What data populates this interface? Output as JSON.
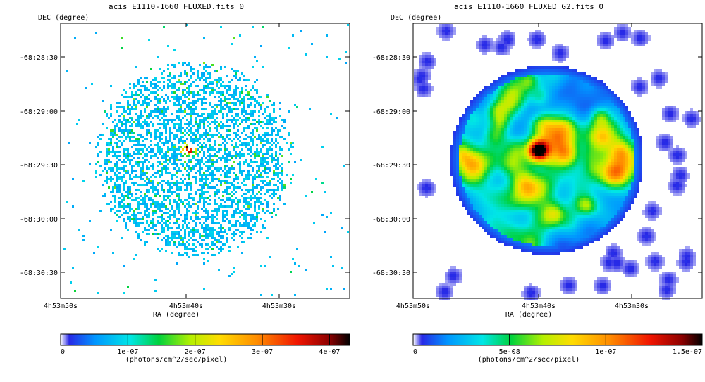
{
  "chart_data": [
    {
      "type": "heatmap",
      "title": "acis_E1110-1660_FLUXED.fits_0",
      "ylabel": "DEC (degree)",
      "xlabel": "RA (degree)",
      "x_ticks": [
        "4h53m50s",
        "4h53m40s",
        "4h53m30s"
      ],
      "y_ticks": [
        "-68:28:30",
        "-68:29:00",
        "-68:29:30",
        "-68:30:00",
        "-68:30:30"
      ],
      "colorbar": {
        "label": "(photons/cm^2/sec/pixel)",
        "range": [
          0,
          4.3e-07
        ],
        "ticks": [
          {
            "value": 0,
            "label": "0"
          },
          {
            "value": 1e-07,
            "label": "1e-07"
          },
          {
            "value": 2e-07,
            "label": "2e-07"
          },
          {
            "value": 3e-07,
            "label": "3e-07"
          },
          {
            "value": 4e-07,
            "label": "4e-07"
          }
        ]
      },
      "image": {
        "style": "sparse-counts",
        "sources": [
          {
            "ra": "4h53m40.5s",
            "dec": "-68:29:22",
            "peak": 4e-07
          }
        ]
      },
      "grid": false
    },
    {
      "type": "heatmap",
      "title": "acis_E1110-1660_FLUXED_G2.fits_0",
      "ylabel": "DEC (degree)",
      "xlabel": "RA (degree)",
      "x_ticks": [
        "4h53m50s",
        "4h53m40s",
        "4h53m30s"
      ],
      "y_ticks": [
        "-68:28:30",
        "-68:29:00",
        "-68:29:30",
        "-68:30:00",
        "-68:30:30"
      ],
      "colorbar": {
        "label": "(photons/cm^2/sec/pixel)",
        "range": [
          0,
          1.5e-07
        ],
        "ticks": [
          {
            "value": 0,
            "label": "0"
          },
          {
            "value": 5e-08,
            "label": "5e-08"
          },
          {
            "value": 1e-07,
            "label": "1e-07"
          },
          {
            "value": 1.5e-07,
            "label": "1.5e-07"
          }
        ]
      },
      "image": {
        "style": "smoothed",
        "sources": [
          {
            "ra": "4h53m40.5s",
            "dec": "-68:29:22",
            "peak": 1.5e-07
          }
        ]
      },
      "grid": false
    }
  ]
}
